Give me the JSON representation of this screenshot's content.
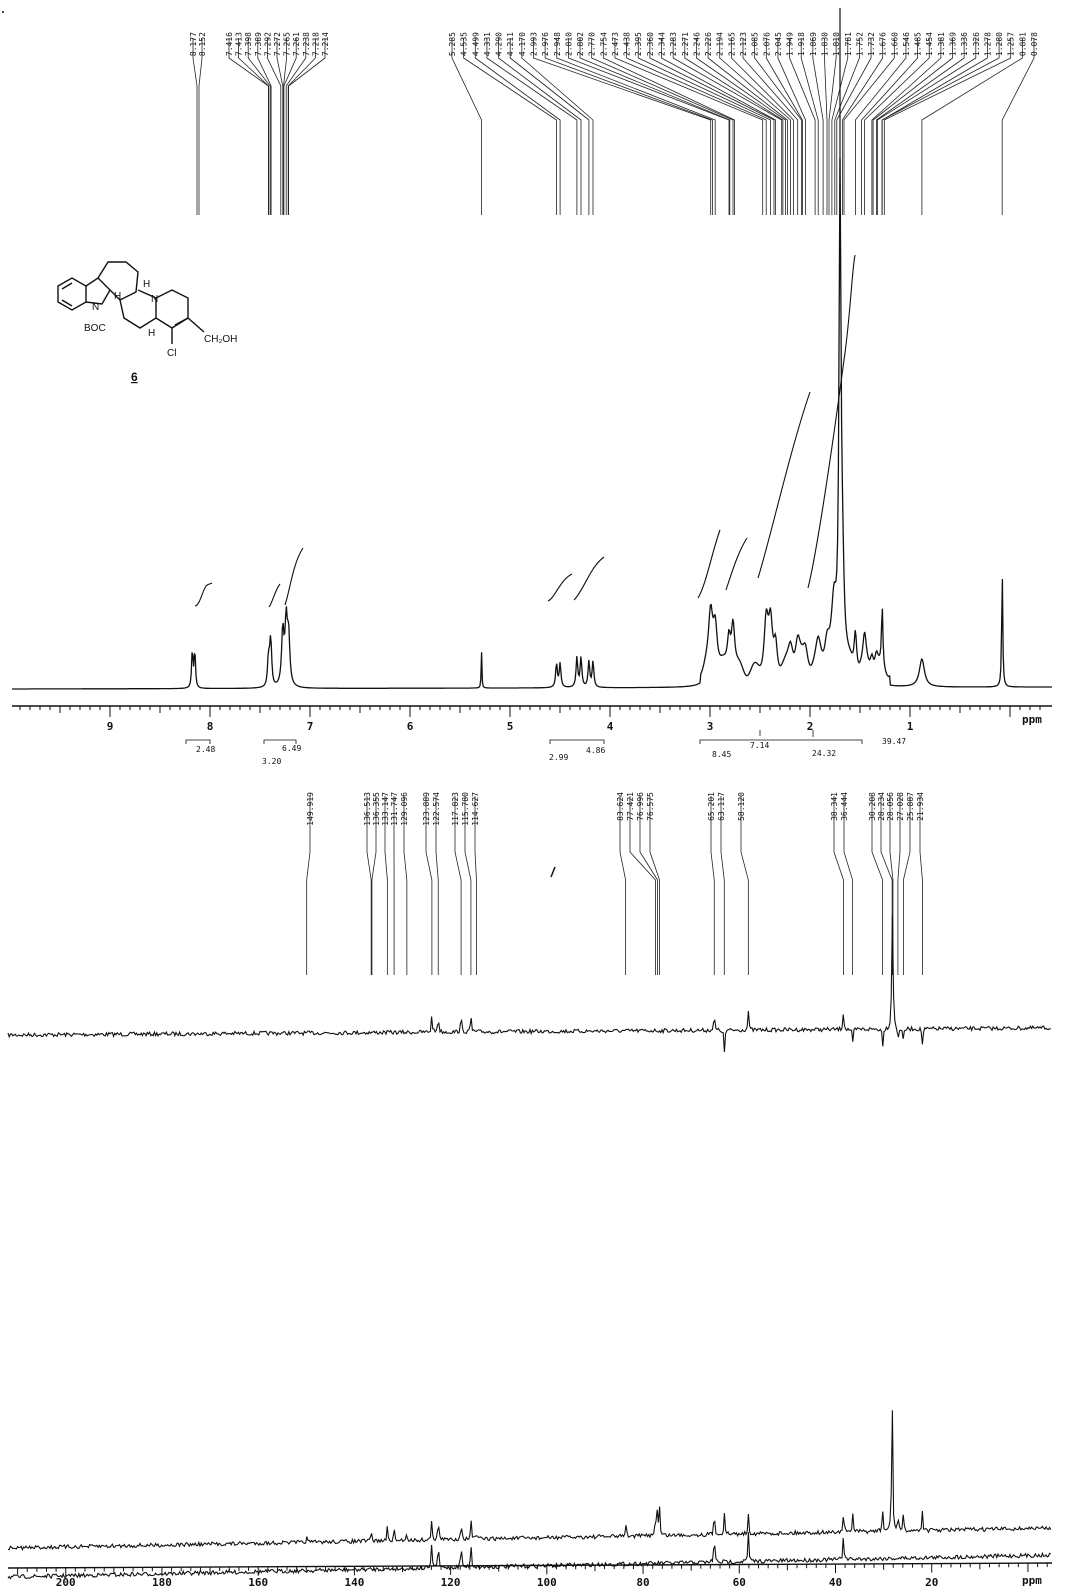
{
  "compound": {
    "number": "6",
    "labels": {
      "n": "N",
      "boc": "BOC",
      "h1": "H",
      "h2": "H",
      "n2": "N",
      "h3": "H",
      "cl": "Cl",
      "ch2oh": "CH₂OH"
    }
  },
  "h1_spectrum": {
    "peak_labels_group1": [
      "8.177",
      "8.152"
    ],
    "peak_labels_group2": [
      "7.416",
      "7.413",
      "7.398",
      "7.389",
      "7.292",
      "7.272",
      "7.265",
      "7.261",
      "7.238",
      "7.218",
      "7.214"
    ],
    "peak_labels_group3": [
      "5.285",
      "4.535",
      "4.499",
      "4.331",
      "4.290",
      "4.211",
      "4.170",
      "2.993",
      "2.976",
      "2.948",
      "2.810",
      "2.802",
      "2.770",
      "2.754",
      "2.473",
      "2.438",
      "2.395",
      "2.360",
      "2.344",
      "2.283",
      "2.271",
      "2.246",
      "2.226",
      "2.194",
      "2.165",
      "2.123",
      "2.085",
      "2.076",
      "2.045",
      "1.949",
      "1.918",
      "1.869",
      "1.830",
      "1.810",
      "1.781",
      "1.752",
      "1.732",
      "1.676",
      "1.660",
      "1.546",
      "1.485",
      "1.454",
      "1.381",
      "1.369",
      "1.336",
      "1.326",
      "1.278",
      "1.280",
      "1.257",
      "0.881",
      "0.078"
    ],
    "axis": {
      "ticks": [
        "9",
        "8",
        "7",
        "6",
        "5",
        "4",
        "3",
        "2",
        "1"
      ],
      "unit": "ppm",
      "range_ppm": [
        9.98,
        -0.42
      ]
    },
    "integrals": [
      "2.48",
      "3.20",
      "6.49",
      "2.99",
      "4.86",
      "8.45",
      "7.14",
      "24.32",
      "39.47"
    ]
  },
  "c13_spectrum": {
    "peak_labels": [
      "149.919",
      "136.513",
      "136.355",
      "133.147",
      "131.747",
      "129.096",
      "123.889",
      "122.574",
      "117.823",
      "115.780",
      "114.627",
      "83.624",
      "77.421",
      "76.996",
      "76.575",
      "65.201",
      "63.117",
      "58.120",
      "38.341",
      "36.444",
      "30.208",
      "28.234",
      "28.056",
      "27.028",
      "25.887",
      "21.934"
    ],
    "axis": {
      "ticks": [
        "200",
        "180",
        "160",
        "140",
        "120",
        "100",
        "80",
        "60",
        "40",
        "20"
      ],
      "unit": "ppm",
      "range_ppm": [
        212,
        -5
      ]
    }
  }
}
